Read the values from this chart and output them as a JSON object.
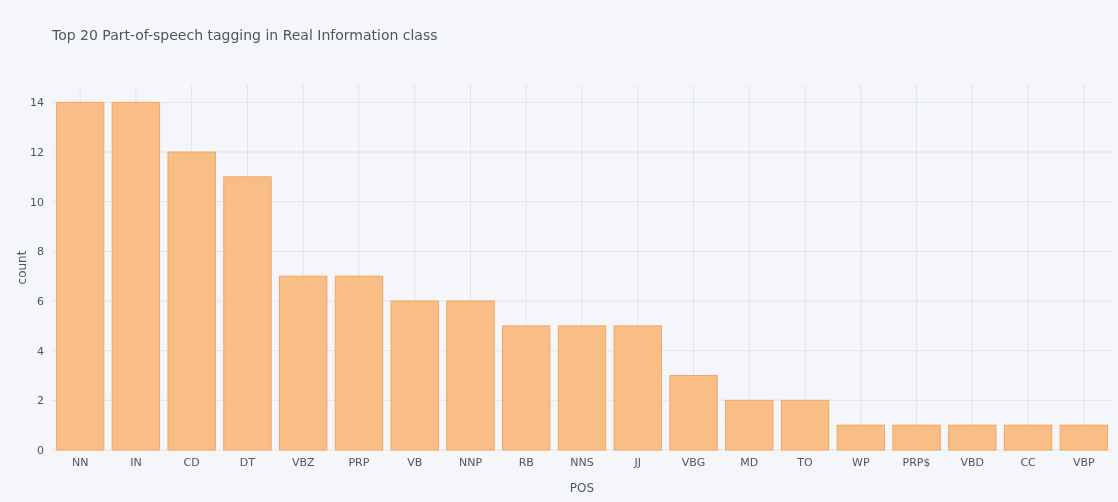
{
  "chart_data": {
    "type": "bar",
    "title": "Top 20 Part-of-speech tagging in Real Information class",
    "xlabel": "POS",
    "ylabel": "count",
    "categories": [
      "NN",
      "IN",
      "CD",
      "DT",
      "VBZ",
      "PRP",
      "VB",
      "NNP",
      "RB",
      "NNS",
      "JJ",
      "VBG",
      "MD",
      "TO",
      "WP",
      "PRP$",
      "VBD",
      "CC",
      "VBP"
    ],
    "values": [
      14,
      14,
      12,
      11,
      7,
      7,
      6,
      6,
      5,
      5,
      5,
      3,
      2,
      2,
      1,
      1,
      1,
      1,
      1
    ],
    "color": "#f8bb80",
    "ylim": [
      0,
      14.7
    ],
    "yticks": [
      0,
      2,
      4,
      6,
      8,
      10,
      12,
      14
    ],
    "grid": true
  }
}
